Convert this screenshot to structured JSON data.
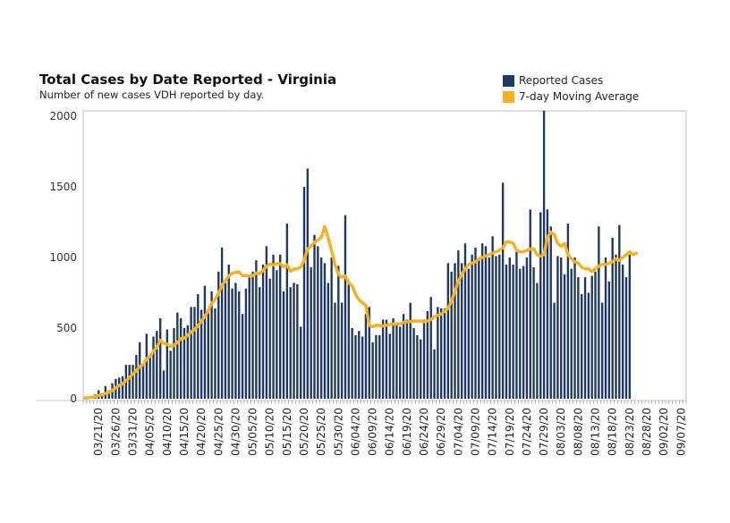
{
  "colors": {
    "bar": "#1f3864",
    "line": "#f4b223",
    "axis": "#bfbfbf"
  },
  "chart_data": {
    "type": "bar",
    "title": "Total Cases by Date Reported - Virginia",
    "subtitle": "Number of new cases VDH reported by day.",
    "legend": {
      "placement": "top-right",
      "entries": [
        "Reported Cases",
        "7-day Moving Average"
      ]
    },
    "start_date": "03/17/20",
    "x_tick_labels": [
      "03/21/20",
      "03/26/20",
      "03/31/20",
      "04/05/20",
      "04/10/20",
      "04/15/20",
      "04/20/20",
      "04/25/20",
      "04/30/20",
      "05/05/20",
      "05/10/20",
      "05/15/20",
      "05/20/20",
      "05/25/20",
      "05/30/20",
      "06/04/20",
      "06/09/20",
      "06/14/20",
      "06/19/20",
      "06/24/20",
      "06/29/20",
      "07/04/20",
      "07/09/20",
      "07/14/20",
      "07/19/20",
      "07/24/20",
      "07/29/20",
      "08/03/20",
      "08/08/20",
      "08/13/20",
      "08/18/20",
      "08/23/20",
      "08/28/20",
      "09/02/20",
      "09/07/20"
    ],
    "y_ticks": [
      0,
      500,
      1000,
      1500,
      2000
    ],
    "ylim": [
      0,
      2000
    ],
    "grid": false,
    "series": [
      {
        "name": "Reported Cases",
        "type": "bar",
        "values": [
          5,
          8,
          15,
          30,
          60,
          40,
          90,
          60,
          110,
          140,
          150,
          160,
          240,
          240,
          240,
          310,
          400,
          250,
          460,
          300,
          440,
          480,
          570,
          200,
          490,
          340,
          500,
          610,
          570,
          500,
          520,
          650,
          650,
          740,
          630,
          800,
          610,
          760,
          640,
          900,
          1070,
          820,
          950,
          780,
          820,
          760,
          600,
          780,
          880,
          900,
          980,
          790,
          950,
          1080,
          850,
          1020,
          910,
          1020,
          760,
          1240,
          790,
          820,
          810,
          510,
          1500,
          1630,
          930,
          1160,
          1080,
          1000,
          960,
          820,
          1000,
          680,
          940,
          680,
          1300,
          820,
          500,
          450,
          480,
          440,
          600,
          650,
          400,
          450,
          450,
          560,
          560,
          460,
          570,
          530,
          510,
          600,
          560,
          680,
          500,
          450,
          420,
          560,
          620,
          720,
          350,
          650,
          640,
          640,
          960,
          900,
          960,
          1050,
          960,
          1100,
          920,
          1020,
          1070,
          980,
          1100,
          1080,
          1000,
          1150,
          1010,
          1020,
          1530,
          950,
          1000,
          950,
          1040,
          920,
          940,
          1000,
          1340,
          930,
          820,
          1320,
          2040,
          1340,
          1220,
          680,
          1010,
          1000,
          880,
          1240,
          920,
          1000,
          860,
          740,
          860,
          750,
          870,
          900,
          1220,
          680,
          1000,
          830,
          1140,
          1020,
          1230,
          950,
          860,
          1020
        ]
      },
      {
        "name": "7-day Moving Average",
        "type": "line",
        "values": [
          5,
          7,
          10,
          14,
          23,
          28,
          38,
          46,
          59,
          78,
          93,
          107,
          127,
          149,
          175,
          198,
          229,
          241,
          283,
          300,
          337,
          364,
          414,
          392,
          388,
          369,
          377,
          400,
          425,
          429,
          450,
          472,
          490,
          516,
          548,
          583,
          621,
          676,
          704,
          746,
          802,
          837,
          868,
          889,
          894,
          898,
          871,
          873,
          868,
          872,
          890,
          885,
          908,
          937,
          953,
          947,
          956,
          956,
          934,
          948,
          902,
          918,
          920,
          932,
          980,
          1060,
          1080,
          1108,
          1123,
          1140,
          1220,
          1140,
          1050,
          950,
          880,
          860,
          870,
          820,
          800,
          740,
          700,
          680,
          660,
          520,
          510,
          520,
          520,
          515,
          520,
          525,
          530,
          530,
          530,
          540,
          545,
          545,
          550,
          550,
          550,
          545,
          550,
          560,
          580,
          590,
          600,
          620,
          640,
          690,
          760,
          830,
          880,
          920,
          950,
          960,
          970,
          990,
          1000,
          1010,
          1020,
          1030,
          1040,
          1050,
          1070,
          1110,
          1110,
          1100,
          1050,
          1040,
          1040,
          1050,
          1060,
          1060,
          1020,
          1010,
          1020,
          1140,
          1180,
          1160,
          1100,
          1080,
          1100,
          1020,
          990,
          970,
          960,
          930,
          920,
          920,
          900,
          920,
          940,
          950,
          950,
          960,
          970,
          990,
          980,
          1000,
          1020,
          1040,
          1020,
          1030
        ]
      }
    ]
  }
}
